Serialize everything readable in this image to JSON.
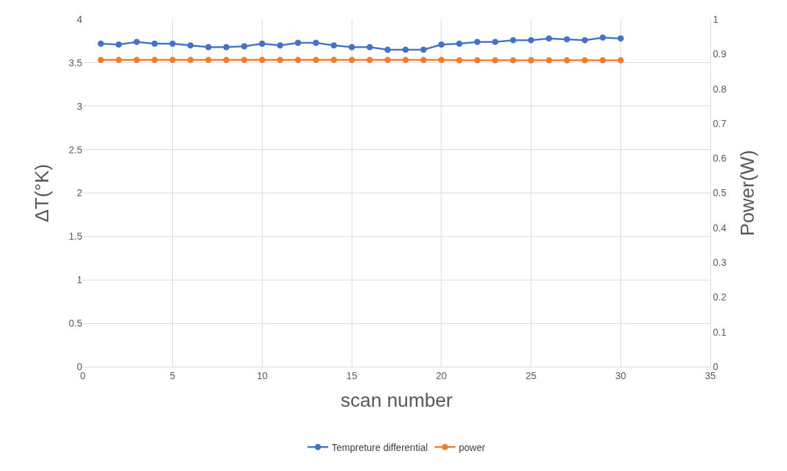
{
  "chart_data": {
    "type": "line",
    "xlabel": "scan number",
    "ylabel": "ΔT(°K)",
    "y2label": "Power(W)",
    "x": [
      1,
      2,
      3,
      4,
      5,
      6,
      7,
      8,
      9,
      10,
      11,
      12,
      13,
      14,
      15,
      16,
      17,
      18,
      19,
      20,
      21,
      22,
      23,
      24,
      25,
      26,
      27,
      28,
      29,
      30
    ],
    "series": [
      {
        "name": "Tempreture differential",
        "color": "#4472c4",
        "values": [
          3.72,
          3.71,
          3.74,
          3.72,
          3.72,
          3.7,
          3.68,
          3.68,
          3.69,
          3.72,
          3.7,
          3.73,
          3.73,
          3.7,
          3.68,
          3.68,
          3.65,
          3.65,
          3.65,
          3.71,
          3.72,
          3.74,
          3.74,
          3.76,
          3.76,
          3.78,
          3.77,
          3.76,
          3.79,
          3.78
        ]
      },
      {
        "name": "power",
        "color": "#ed7d31",
        "axis": "y2",
        "values": [
          0.883,
          0.883,
          0.883,
          0.883,
          0.883,
          0.883,
          0.883,
          0.883,
          0.883,
          0.883,
          0.883,
          0.883,
          0.883,
          0.883,
          0.883,
          0.883,
          0.883,
          0.883,
          0.883,
          0.883,
          0.882,
          0.882,
          0.882,
          0.882,
          0.882,
          0.882,
          0.882,
          0.882,
          0.882,
          0.882
        ]
      }
    ],
    "xlim": [
      0,
      35
    ],
    "xticks": [
      0,
      5,
      10,
      15,
      20,
      25,
      30,
      35
    ],
    "ylim": [
      0,
      4
    ],
    "yticks": [
      0,
      0.5,
      1,
      1.5,
      2,
      2.5,
      3,
      3.5,
      4
    ],
    "y2lim": [
      0,
      1
    ],
    "y2ticks": [
      0,
      0.1,
      0.2,
      0.3,
      0.4,
      0.5,
      0.6,
      0.7,
      0.8,
      0.9,
      1
    ],
    "grid": true,
    "legend": "bottom",
    "marker": "circle",
    "line_style": "solid"
  }
}
